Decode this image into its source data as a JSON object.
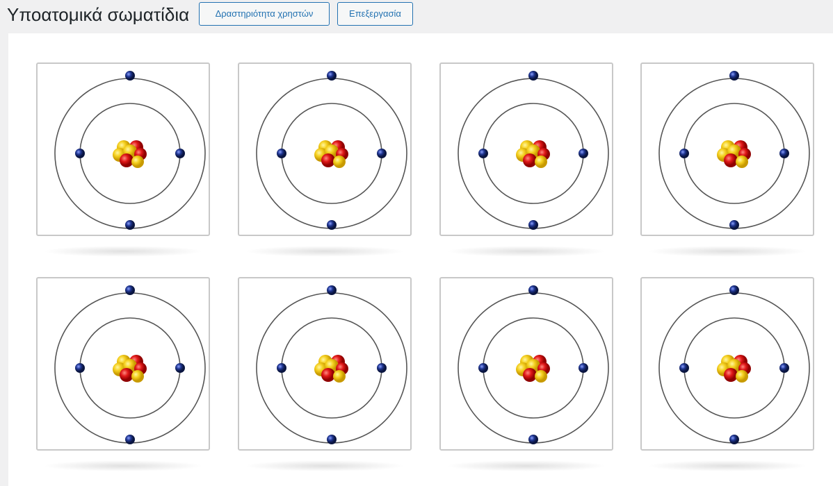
{
  "header": {
    "title": "Υποατομικά σωματίδια",
    "buttons": [
      "Δραστηριότητα χρηστών",
      "Επεξεργασία"
    ]
  }
}
